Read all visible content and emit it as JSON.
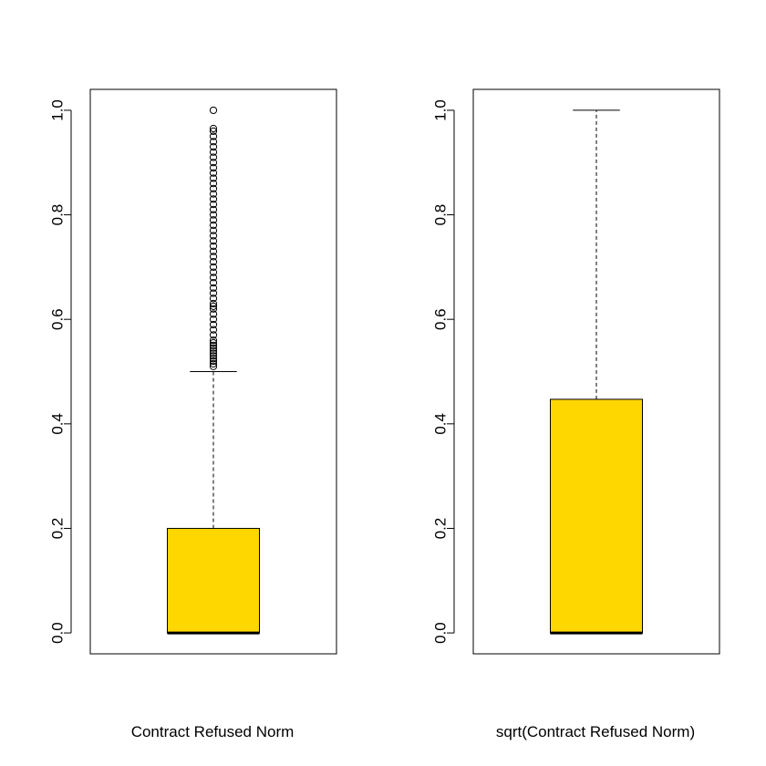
{
  "chart_data": [
    {
      "type": "boxplot",
      "title": "",
      "xlabel": "Contract Refused Norm",
      "ylabel": "",
      "ylim": [
        -0.04,
        1.04
      ],
      "yticks": [
        0.0,
        0.2,
        0.4,
        0.6,
        0.8,
        1.0
      ],
      "ytick_labels": [
        "0.0",
        "0.2",
        "0.4",
        "0.6",
        "0.8",
        "1.0"
      ],
      "box_color": "#FFD700",
      "stats": {
        "min": 0.0,
        "q1": 0.0,
        "median": 0.0,
        "q3": 0.2,
        "whisker_low": 0.0,
        "whisker_high": 0.5
      },
      "outliers": [
        0.51,
        0.515,
        0.52,
        0.525,
        0.53,
        0.535,
        0.54,
        0.545,
        0.55,
        0.555,
        0.56,
        0.57,
        0.58,
        0.59,
        0.6,
        0.61,
        0.62,
        0.625,
        0.63,
        0.64,
        0.65,
        0.66,
        0.67,
        0.68,
        0.69,
        0.7,
        0.71,
        0.72,
        0.73,
        0.74,
        0.75,
        0.76,
        0.77,
        0.78,
        0.79,
        0.8,
        0.81,
        0.82,
        0.83,
        0.84,
        0.85,
        0.86,
        0.87,
        0.88,
        0.89,
        0.9,
        0.91,
        0.92,
        0.93,
        0.94,
        0.95,
        0.96,
        0.965,
        1.0
      ]
    },
    {
      "type": "boxplot",
      "title": "",
      "xlabel": "sqrt(Contract Refused Norm)",
      "ylabel": "",
      "ylim": [
        -0.04,
        1.04
      ],
      "yticks": [
        0.0,
        0.2,
        0.4,
        0.6,
        0.8,
        1.0
      ],
      "ytick_labels": [
        "0.0",
        "0.2",
        "0.4",
        "0.6",
        "0.8",
        "1.0"
      ],
      "box_color": "#FFD700",
      "stats": {
        "min": 0.0,
        "q1": 0.0,
        "median": 0.0,
        "q3": 0.447,
        "whisker_low": 0.0,
        "whisker_high": 1.0
      },
      "outliers": []
    }
  ]
}
